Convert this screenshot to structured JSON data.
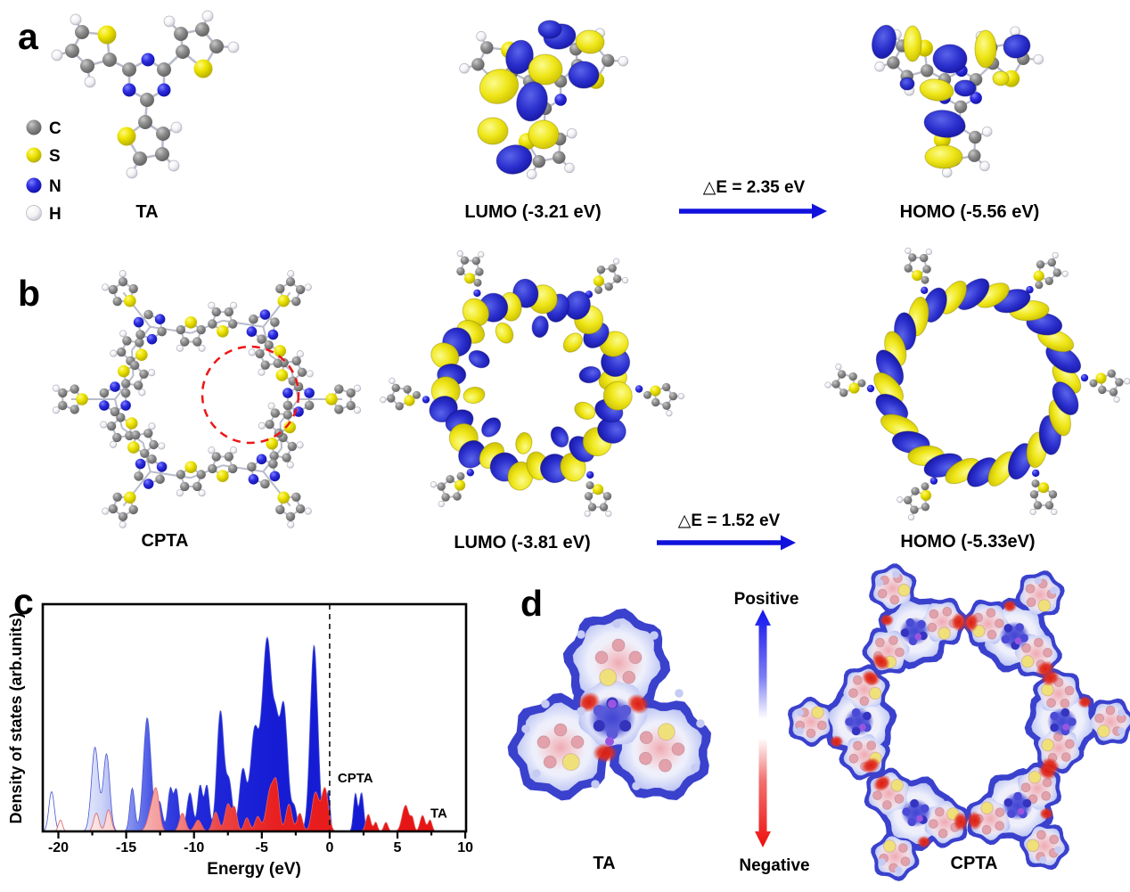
{
  "panel_a": {
    "letter": "a",
    "molecule_label": "TA",
    "lumo_label": "LUMO (-3.21 eV)",
    "homo_label": "HOMO (-5.56 eV)",
    "delta_e_label": "△E = 2.35 eV",
    "legend": {
      "items": [
        {
          "label": "C",
          "color": "#7d7d7d"
        },
        {
          "label": "S",
          "color": "#e3da00"
        },
        {
          "label": "N",
          "color": "#2222cc"
        },
        {
          "label": "H",
          "color": "#f4f4f4"
        }
      ]
    }
  },
  "panel_b": {
    "letter": "b",
    "molecule_label": "CPTA",
    "lumo_label": "LUMO (-3.81 eV)",
    "homo_label": "HOMO (-5.33eV)",
    "delta_e_label": "△E = 1.52 eV",
    "highlight_circle_color": "#ee1515"
  },
  "panel_c": {
    "letter": "c"
  },
  "panel_d": {
    "letter": "d",
    "ta_label": "TA",
    "cpta_label": "CPTA",
    "colorbar": {
      "top_label": "Positive",
      "bottom_label": "Negative",
      "positive_color": "#1111ee",
      "negative_color": "#ee0e0e"
    }
  },
  "orbital_colors": {
    "positive_lobe": "#2a2ecc",
    "negative_lobe": "#efe618"
  },
  "arrow_color": "#1111dd",
  "chart_data": {
    "type": "area",
    "title": "",
    "xlabel": "Energy (eV)",
    "ylabel": "Density of states (arb.units)",
    "xlim": [
      -21.15,
      10
    ],
    "ylim": [
      0,
      1
    ],
    "x_ticks": [
      -20,
      -15,
      -10,
      -5,
      0,
      5,
      10
    ],
    "grid": false,
    "legend_position": "none",
    "dashed_line_x": 0,
    "annotations": [
      {
        "text": "CPTA",
        "x": 1.9,
        "y": 0.215
      },
      {
        "text": "TA",
        "x": 8.05,
        "y": 0.06
      }
    ],
    "peak_format": "[center_eV, height_fraction, sigma_eV]",
    "series": [
      {
        "name": "CPTA",
        "color": "#1c22d6",
        "peaks": [
          [
            -20.5,
            0.175,
            0.2
          ],
          [
            -17.3,
            0.37,
            0.26
          ],
          [
            -16.45,
            0.34,
            0.24
          ],
          [
            -14.55,
            0.19,
            0.18
          ],
          [
            -13.45,
            0.5,
            0.28
          ],
          [
            -12.55,
            0.13,
            0.22
          ],
          [
            -11.75,
            0.185,
            0.18
          ],
          [
            -11.3,
            0.18,
            0.18
          ],
          [
            -10.3,
            0.17,
            0.22
          ],
          [
            -9.55,
            0.2,
            0.18
          ],
          [
            -9.05,
            0.2,
            0.18
          ],
          [
            -8.05,
            0.53,
            0.26
          ],
          [
            -7.4,
            0.21,
            0.22
          ],
          [
            -6.4,
            0.27,
            0.26
          ],
          [
            -5.55,
            0.42,
            0.3
          ],
          [
            -4.6,
            0.85,
            0.38
          ],
          [
            -3.95,
            0.25,
            0.2
          ],
          [
            -3.4,
            0.56,
            0.3
          ],
          [
            -2.6,
            0.1,
            0.2
          ],
          [
            -1.15,
            0.82,
            0.28
          ],
          [
            -0.1,
            0.18,
            0.13
          ],
          [
            1.9,
            0.165,
            0.14
          ],
          [
            2.35,
            0.17,
            0.16
          ]
        ]
      },
      {
        "name": "TA",
        "color": "#e81414",
        "peaks": [
          [
            -19.85,
            0.05,
            0.15
          ],
          [
            -17.2,
            0.08,
            0.2
          ],
          [
            -16.3,
            0.095,
            0.2
          ],
          [
            -13.1,
            0.1,
            0.3
          ],
          [
            -12.75,
            0.135,
            0.22
          ],
          [
            -10.85,
            0.08,
            0.22
          ],
          [
            -9.7,
            0.05,
            0.25
          ],
          [
            -8.4,
            0.085,
            0.22
          ],
          [
            -7.5,
            0.12,
            0.22
          ],
          [
            -7.0,
            0.1,
            0.18
          ],
          [
            -6.1,
            0.06,
            0.2
          ],
          [
            -5.3,
            0.065,
            0.2
          ],
          [
            -4.35,
            0.19,
            0.3
          ],
          [
            -3.9,
            0.16,
            0.2
          ],
          [
            -3.0,
            0.12,
            0.22
          ],
          [
            -2.2,
            0.08,
            0.2
          ],
          [
            -1.05,
            0.17,
            0.25
          ],
          [
            -0.35,
            0.19,
            0.25
          ],
          [
            2.85,
            0.075,
            0.18
          ],
          [
            3.4,
            0.04,
            0.13
          ],
          [
            4.15,
            0.04,
            0.15
          ],
          [
            5.6,
            0.115,
            0.25
          ],
          [
            6.1,
            0.05,
            0.13
          ],
          [
            6.85,
            0.07,
            0.18
          ],
          [
            7.4,
            0.05,
            0.15
          ]
        ]
      }
    ]
  }
}
